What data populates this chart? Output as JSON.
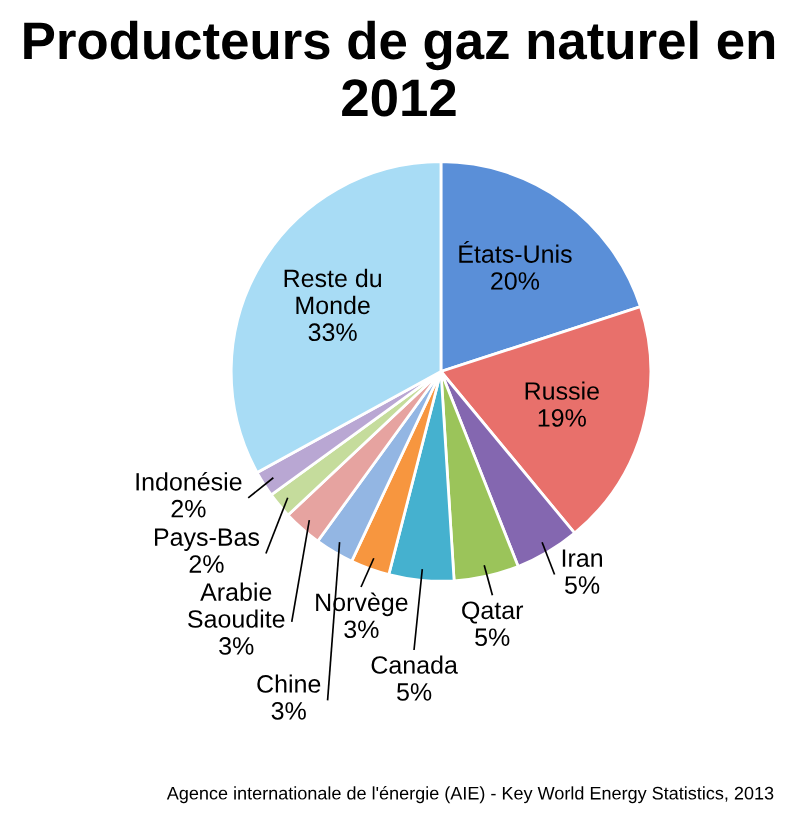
{
  "chart_data": {
    "type": "pie",
    "title": "Producteurs de gaz naturel en 2012",
    "categories": [
      "États-Unis",
      "Russie",
      "Iran",
      "Qatar",
      "Canada",
      "Norvège",
      "Chine",
      "Arabie Saoudite",
      "Pays-Bas",
      "Indonésie",
      "Reste du Monde"
    ],
    "values": [
      20,
      19,
      5,
      5,
      5,
      3,
      3,
      3,
      2,
      2,
      33
    ],
    "colors": [
      "#5a8fd8",
      "#e8706b",
      "#8467b0",
      "#9bc45a",
      "#45b1cf",
      "#f7963f",
      "#93b6e3",
      "#e6a3a0",
      "#c5dc9c",
      "#b9a7d3",
      "#a8dcf5"
    ],
    "value_labels": [
      "20%",
      "19%",
      "5%",
      "5%",
      "5%",
      "3%",
      "3%",
      "3%",
      "2%",
      "2%",
      "33%"
    ],
    "annotations": [
      "Agence internationale de l'énergie (AIE) - Key World Energy Statistics, 2013"
    ]
  }
}
